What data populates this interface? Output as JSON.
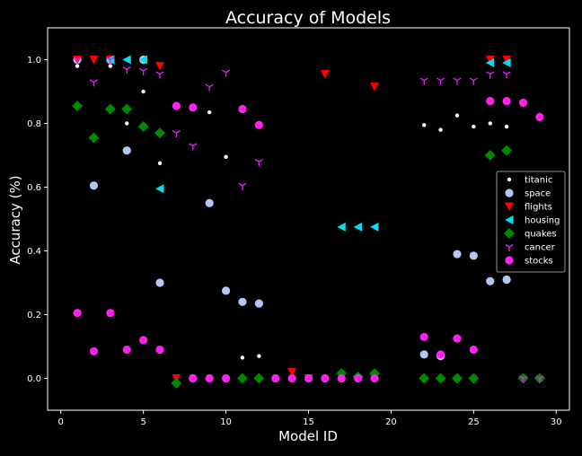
{
  "chart_data": {
    "type": "scatter",
    "title": "Accuracy of Models",
    "xlabel": "Model ID",
    "ylabel": "Accuracy (%)",
    "xlim": [
      -0.8,
      30.8
    ],
    "ylim": [
      -0.1,
      1.1
    ],
    "xticks": [
      0,
      5,
      10,
      15,
      20,
      25,
      30
    ],
    "yticks": [
      0.0,
      0.2,
      0.4,
      0.6,
      0.8,
      1.0
    ],
    "grid": false,
    "legend_position": "center-right",
    "background": "#000000",
    "foreground": "#ffffff",
    "series": [
      {
        "name": "titanic",
        "marker": "point",
        "color": "#ffffff",
        "points": [
          [
            1,
            0.98
          ],
          [
            2,
            0.76
          ],
          [
            3,
            0.98
          ],
          [
            4,
            0.8
          ],
          [
            5,
            0.9
          ],
          [
            6,
            0.675
          ],
          [
            9,
            0.835
          ],
          [
            10,
            0.695
          ],
          [
            11,
            0.065
          ],
          [
            12,
            0.07
          ],
          [
            22,
            0.795
          ],
          [
            23,
            0.78
          ],
          [
            24,
            0.825
          ],
          [
            25,
            0.79
          ],
          [
            26,
            0.8
          ],
          [
            27,
            0.79
          ]
        ]
      },
      {
        "name": "space",
        "marker": "circle",
        "color": "#b0c8f8",
        "points": [
          [
            1,
            1.0
          ],
          [
            2,
            0.605
          ],
          [
            3,
            1.0
          ],
          [
            4,
            0.715
          ],
          [
            5,
            1.0
          ],
          [
            6,
            0.3
          ],
          [
            8,
            0.0
          ],
          [
            9,
            0.55
          ],
          [
            10,
            0.275
          ],
          [
            11,
            0.24
          ],
          [
            12,
            0.235
          ],
          [
            22,
            0.075
          ],
          [
            23,
            0.07
          ],
          [
            24,
            0.39
          ],
          [
            25,
            0.385
          ],
          [
            26,
            0.305
          ],
          [
            27,
            0.31
          ]
        ]
      },
      {
        "name": "flights",
        "marker": "triangle-down",
        "color": "#ff0000",
        "points": [
          [
            1,
            1.0
          ],
          [
            2,
            1.0
          ],
          [
            3,
            1.0
          ],
          [
            6,
            0.98
          ],
          [
            7,
            0.0
          ],
          [
            14,
            0.02
          ],
          [
            15,
            0.0
          ],
          [
            16,
            0.955
          ],
          [
            19,
            0.915
          ],
          [
            26,
            1.0
          ],
          [
            27,
            1.0
          ]
        ]
      },
      {
        "name": "housing",
        "marker": "triangle-left",
        "color": "#00e0f0",
        "points": [
          [
            3,
            1.0
          ],
          [
            4,
            1.0
          ],
          [
            5,
            1.0
          ],
          [
            6,
            0.595
          ],
          [
            17,
            0.475
          ],
          [
            18,
            0.475
          ],
          [
            19,
            0.475
          ],
          [
            26,
            0.99
          ],
          [
            27,
            0.99
          ]
        ]
      },
      {
        "name": "quakes",
        "marker": "diamond",
        "color": "#008800",
        "points": [
          [
            1,
            0.855
          ],
          [
            2,
            0.755
          ],
          [
            3,
            0.845
          ],
          [
            4,
            0.845
          ],
          [
            5,
            0.79
          ],
          [
            6,
            0.77
          ],
          [
            7,
            -0.015
          ],
          [
            11,
            0.0
          ],
          [
            12,
            0.0
          ],
          [
            17,
            0.015
          ],
          [
            18,
            0.005
          ],
          [
            19,
            0.015
          ],
          [
            22,
            0.0
          ],
          [
            23,
            0.0
          ],
          [
            24,
            0.0
          ],
          [
            25,
            0.0
          ],
          [
            26,
            0.7
          ],
          [
            27,
            0.715
          ],
          [
            28,
            0.0
          ],
          [
            29,
            0.0
          ]
        ]
      },
      {
        "name": "cancer",
        "marker": "tri-down",
        "color": "#e020f0",
        "points": [
          [
            1,
            1.0
          ],
          [
            2,
            0.93
          ],
          [
            3,
            1.0
          ],
          [
            4,
            0.97
          ],
          [
            5,
            0.965
          ],
          [
            6,
            0.955
          ],
          [
            7,
            0.77
          ],
          [
            8,
            0.73
          ],
          [
            9,
            0.915
          ],
          [
            10,
            0.96
          ],
          [
            11,
            0.605
          ],
          [
            12,
            0.68
          ],
          [
            22,
            0.935
          ],
          [
            23,
            0.935
          ],
          [
            24,
            0.935
          ],
          [
            25,
            0.935
          ],
          [
            26,
            0.955
          ],
          [
            27,
            0.955
          ],
          [
            28,
            0.0
          ],
          [
            29,
            0.0
          ]
        ]
      },
      {
        "name": "stocks",
        "marker": "circle",
        "color": "#ff22ee",
        "points": [
          [
            1,
            0.205
          ],
          [
            2,
            0.085
          ],
          [
            3,
            0.205
          ],
          [
            4,
            0.09
          ],
          [
            5,
            0.12
          ],
          [
            6,
            0.09
          ],
          [
            7,
            0.855
          ],
          [
            8,
            0.0
          ],
          [
            8,
            0.85
          ],
          [
            9,
            0.0
          ],
          [
            10,
            0.0
          ],
          [
            11,
            0.845
          ],
          [
            12,
            0.795
          ],
          [
            13,
            0.0
          ],
          [
            14,
            0.0
          ],
          [
            15,
            0.0
          ],
          [
            16,
            0.0
          ],
          [
            17,
            0.0
          ],
          [
            18,
            0.0
          ],
          [
            19,
            0.0
          ],
          [
            22,
            0.13
          ],
          [
            23,
            0.075
          ],
          [
            24,
            0.125
          ],
          [
            25,
            0.09
          ],
          [
            26,
            0.87
          ],
          [
            27,
            0.87
          ],
          [
            28,
            0.865
          ],
          [
            29,
            0.82
          ]
        ]
      }
    ]
  }
}
